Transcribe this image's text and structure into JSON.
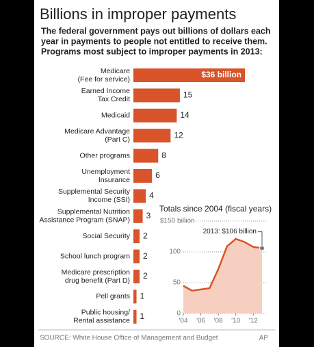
{
  "chart_data": [
    {
      "type": "bar",
      "title": "Billions in improper payments",
      "subtitle": [
        "The federal government pays out billions of dollars each",
        "year in payments to people not entitled to receive them.",
        "Programs most subject to improper payments in 2013:"
      ],
      "categories": [
        [
          "Medicare",
          "(Fee for service)"
        ],
        [
          "Earned Income",
          "Tax Credit"
        ],
        [
          "Medicaid"
        ],
        [
          "Medicare Advantage",
          "(Part C)"
        ],
        [
          "Other programs"
        ],
        [
          "Unemployment",
          "Insurance"
        ],
        [
          "Supplemental Security",
          "Income (SSI)"
        ],
        [
          "Supplemental Nutrition",
          "Assistance Program (SNAP)"
        ],
        [
          "Social Security"
        ],
        [
          "School lunch program"
        ],
        [
          "Medicare prescription",
          "drug benefit (Part D)"
        ],
        [
          "Pell grants"
        ],
        [
          "Public housing/",
          "Rental assistance"
        ]
      ],
      "values": [
        36,
        15,
        14,
        12,
        8,
        6,
        4,
        3,
        2,
        2,
        2,
        1,
        1
      ],
      "value_labels": [
        "$36 billion",
        "15",
        "14",
        "12",
        "8",
        "6",
        "4",
        "3",
        "2",
        "2",
        "2",
        "1",
        "1"
      ],
      "color": "#d9532b"
    },
    {
      "type": "area",
      "title": "Totals since 2004 (fiscal years)",
      "x": [
        2004,
        2005,
        2006,
        2007,
        2008,
        2009,
        2010,
        2011,
        2012,
        2013
      ],
      "series": [
        {
          "name": "Improper payments",
          "color": "#d9532b",
          "values": [
            45,
            37,
            39,
            41,
            72,
            109,
            121,
            116,
            108,
            106
          ]
        }
      ],
      "xlim": [
        2004,
        2013
      ],
      "xticks": [
        {
          "value": 2004,
          "label": "'04"
        },
        {
          "value": 2006,
          "label": "'06"
        },
        {
          "value": 2008,
          "label": "'08"
        },
        {
          "value": 2010,
          "label": "'10"
        },
        {
          "value": 2012,
          "label": "'12"
        }
      ],
      "ylim": [
        0,
        150
      ],
      "yticks": [
        0,
        50,
        100,
        {
          "value": 150,
          "label": "$150 billion"
        }
      ],
      "grid": true,
      "fill": "#f7cfc0",
      "annotation": "2013: $106 billion"
    }
  ],
  "source": "SOURCE: White House Office of Management and Budget",
  "credit": "AP"
}
